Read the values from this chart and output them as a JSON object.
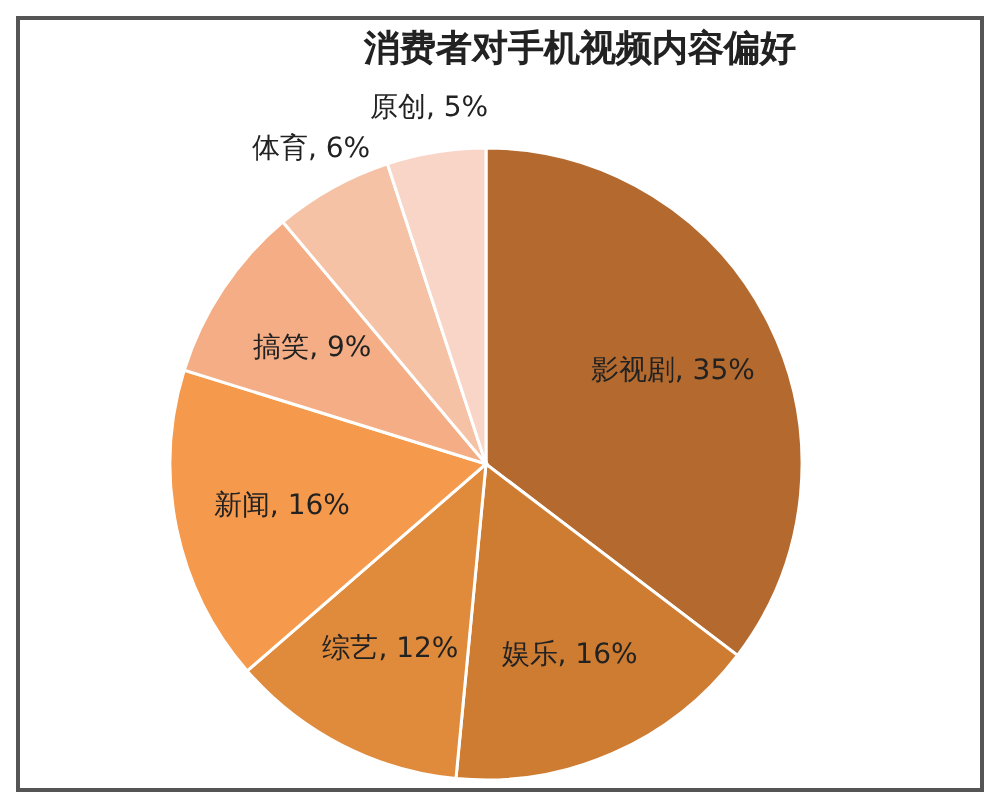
{
  "chart_data": {
    "type": "pie",
    "title": "消费者对手机视频内容偏好",
    "categories": [
      "影视剧",
      "娱乐",
      "综艺",
      "新闻",
      "搞笑",
      "体育",
      "原创"
    ],
    "values": [
      35,
      16,
      12,
      16,
      9,
      6,
      5
    ],
    "value_labels": [
      "35%",
      "16%",
      "12%",
      "16%",
      "9%",
      "6%",
      "5%"
    ],
    "colors": [
      "#b46a2e",
      "#cf7c33",
      "#e08a3c",
      "#f59a4c",
      "#f4ad84",
      "#f6c2a5",
      "#f8d5c6"
    ]
  }
}
